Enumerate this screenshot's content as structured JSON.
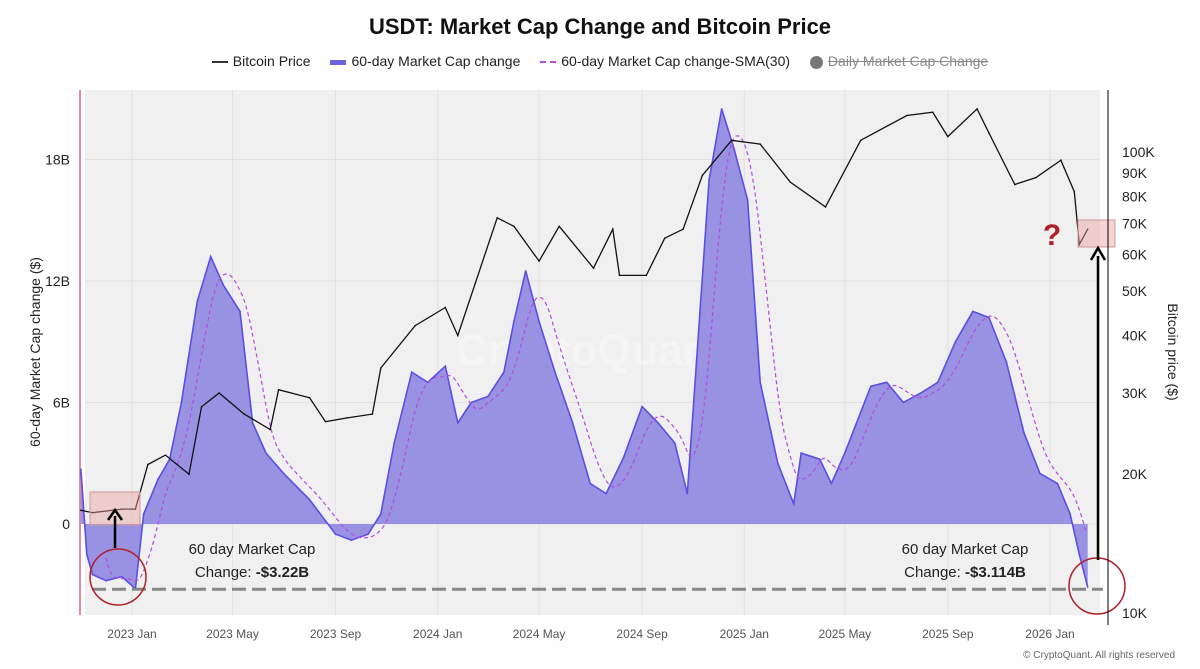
{
  "chart_data": {
    "type": "area",
    "title": "USDT: Market Cap Change and Bitcoin Price",
    "ylabel": "60-day Market Cap change ($)",
    "y2label": "Bitcoin price ($)",
    "ylim": [
      -3.5,
      21.5
    ],
    "y2_scale": "log",
    "y2lim": [
      10,
      130
    ],
    "yticks": [
      {
        "v": 18,
        "label": "18B"
      },
      {
        "v": 12,
        "label": "12B"
      },
      {
        "v": 6,
        "label": "6B"
      },
      {
        "v": 0,
        "label": "0"
      }
    ],
    "y2ticks": [
      {
        "v": 100,
        "label": "100K"
      },
      {
        "v": 90,
        "label": "90K"
      },
      {
        "v": 80,
        "label": "80K"
      },
      {
        "v": 70,
        "label": "70K"
      },
      {
        "v": 60,
        "label": "60K"
      },
      {
        "v": 50,
        "label": "50K"
      },
      {
        "v": 40,
        "label": "40K"
      },
      {
        "v": 30,
        "label": "30K"
      },
      {
        "v": 20,
        "label": "20K"
      },
      {
        "v": 10,
        "label": "10K"
      }
    ],
    "xticks": [
      {
        "d": "2023-01-01",
        "label": "2023 Jan"
      },
      {
        "d": "2023-05-01",
        "label": "2023 May"
      },
      {
        "d": "2023-09-01",
        "label": "2023 Sep"
      },
      {
        "d": "2024-01-01",
        "label": "2024 Jan"
      },
      {
        "d": "2024-05-01",
        "label": "2024 May"
      },
      {
        "d": "2024-09-01",
        "label": "2024 Sep"
      },
      {
        "d": "2025-01-01",
        "label": "2025 Jan"
      },
      {
        "d": "2025-05-01",
        "label": "2025 May"
      },
      {
        "d": "2025-09-01",
        "label": "2025 Sep"
      },
      {
        "d": "2026-01-01",
        "label": "2026 Jan"
      }
    ],
    "grid": true,
    "legend_position": "top",
    "legend": [
      "Bitcoin Price",
      "60-day Market Cap change",
      "60-day Market Cap change-SMA(30)",
      "Daily Market Cap Change"
    ],
    "colors": {
      "btc": "#111111",
      "mc_fill": "#8f87e0",
      "mc_line": "#5a4fe0",
      "sma": "#b44be0",
      "daily": "#777777",
      "annot_red": "#b0202a",
      "box": "#e8a0a0"
    },
    "series": [
      {
        "name": "60-day Market Cap change",
        "unit": "B USD",
        "points": [
          [
            "2022-11-01",
            2.7
          ],
          [
            "2022-11-08",
            -1.5
          ],
          [
            "2022-11-15",
            -2.5
          ],
          [
            "2022-12-01",
            -2.8
          ],
          [
            "2022-12-20",
            -2.6
          ],
          [
            "2023-01-05",
            -3.2
          ],
          [
            "2023-01-15",
            0.5
          ],
          [
            "2023-02-01",
            2.2
          ],
          [
            "2023-02-15",
            3.2
          ],
          [
            "2023-03-01",
            6
          ],
          [
            "2023-03-20",
            11
          ],
          [
            "2023-04-05",
            13.2
          ],
          [
            "2023-04-20",
            11.8
          ],
          [
            "2023-05-10",
            10.5
          ],
          [
            "2023-05-25",
            5
          ],
          [
            "2023-06-10",
            3.5
          ],
          [
            "2023-07-01",
            2.5
          ],
          [
            "2023-08-01",
            1.2
          ],
          [
            "2023-09-01",
            -0.5
          ],
          [
            "2023-09-20",
            -0.8
          ],
          [
            "2023-10-10",
            -0.5
          ],
          [
            "2023-10-25",
            0.5
          ],
          [
            "2023-11-10",
            4
          ],
          [
            "2023-12-01",
            7.5
          ],
          [
            "2023-12-20",
            7
          ],
          [
            "2024-01-10",
            7.8
          ],
          [
            "2024-01-25",
            5
          ],
          [
            "2024-02-10",
            6
          ],
          [
            "2024-03-01",
            6.3
          ],
          [
            "2024-03-20",
            7.5
          ],
          [
            "2024-04-01",
            10
          ],
          [
            "2024-04-15",
            12.5
          ],
          [
            "2024-05-01",
            10
          ],
          [
            "2024-05-20",
            7.5
          ],
          [
            "2024-06-10",
            5
          ],
          [
            "2024-07-01",
            2
          ],
          [
            "2024-07-20",
            1.5
          ],
          [
            "2024-08-10",
            3.3
          ],
          [
            "2024-09-01",
            5.8
          ],
          [
            "2024-09-20",
            5
          ],
          [
            "2024-10-10",
            4
          ],
          [
            "2024-10-25",
            1.5
          ],
          [
            "2024-11-05",
            8
          ],
          [
            "2024-11-20",
            17
          ],
          [
            "2024-12-05",
            20.5
          ],
          [
            "2024-12-20",
            18.5
          ],
          [
            "2025-01-05",
            16
          ],
          [
            "2025-01-20",
            7
          ],
          [
            "2025-02-10",
            3
          ],
          [
            "2025-03-01",
            1
          ],
          [
            "2025-03-10",
            3.5
          ],
          [
            "2025-04-01",
            3.2
          ],
          [
            "2025-04-15",
            2
          ],
          [
            "2025-05-01",
            3.5
          ],
          [
            "2025-06-01",
            6.8
          ],
          [
            "2025-06-20",
            7
          ],
          [
            "2025-07-10",
            6
          ],
          [
            "2025-08-01",
            6.5
          ],
          [
            "2025-08-20",
            7
          ],
          [
            "2025-09-10",
            9
          ],
          [
            "2025-10-01",
            10.5
          ],
          [
            "2025-10-20",
            10.2
          ],
          [
            "2025-11-10",
            8
          ],
          [
            "2025-12-01",
            4.5
          ],
          [
            "2025-12-20",
            2.5
          ],
          [
            "2026-01-10",
            2
          ],
          [
            "2026-01-25",
            0.5
          ],
          [
            "2026-02-05",
            -1.5
          ],
          [
            "2026-02-15",
            -3.114
          ]
        ]
      },
      {
        "name": "Bitcoin Price",
        "unit": "K USD",
        "points": [
          [
            "2022-11-01",
            16.7
          ],
          [
            "2022-11-15",
            16.5
          ],
          [
            "2022-12-20",
            16.8
          ],
          [
            "2023-01-05",
            16.8
          ],
          [
            "2023-01-20",
            21
          ],
          [
            "2023-02-10",
            22
          ],
          [
            "2023-03-10",
            20
          ],
          [
            "2023-03-25",
            28
          ],
          [
            "2023-04-15",
            30
          ],
          [
            "2023-05-15",
            27
          ],
          [
            "2023-06-15",
            25
          ],
          [
            "2023-06-25",
            30.5
          ],
          [
            "2023-08-01",
            29.3
          ],
          [
            "2023-08-20",
            26
          ],
          [
            "2023-09-15",
            26.5
          ],
          [
            "2023-10-15",
            27
          ],
          [
            "2023-10-25",
            34
          ],
          [
            "2023-12-05",
            42
          ],
          [
            "2024-01-10",
            46
          ],
          [
            "2024-01-25",
            40
          ],
          [
            "2024-02-15",
            52
          ],
          [
            "2024-03-12",
            72
          ],
          [
            "2024-04-01",
            69
          ],
          [
            "2024-05-01",
            58
          ],
          [
            "2024-05-25",
            69
          ],
          [
            "2024-07-05",
            56
          ],
          [
            "2024-07-28",
            68
          ],
          [
            "2024-08-05",
            54
          ],
          [
            "2024-09-06",
            54
          ],
          [
            "2024-09-28",
            65
          ],
          [
            "2024-10-20",
            68
          ],
          [
            "2024-11-12",
            89
          ],
          [
            "2024-12-17",
            106
          ],
          [
            "2025-01-20",
            104
          ],
          [
            "2025-02-25",
            86
          ],
          [
            "2025-04-08",
            76
          ],
          [
            "2025-05-20",
            106
          ],
          [
            "2025-07-14",
            120
          ],
          [
            "2025-08-14",
            122
          ],
          [
            "2025-09-01",
            108
          ],
          [
            "2025-10-06",
            124
          ],
          [
            "2025-10-20",
            110
          ],
          [
            "2025-11-20",
            85
          ],
          [
            "2025-12-15",
            88
          ],
          [
            "2026-01-14",
            96
          ],
          [
            "2026-01-30",
            82
          ],
          [
            "2026-02-05",
            63
          ],
          [
            "2026-02-15",
            68
          ]
        ]
      }
    ],
    "sma_window_days": 30,
    "annotations": {
      "left_text_1": "60 day Market Cap",
      "left_text_2": "Change: ",
      "left_value": "-$3.22B",
      "right_text_1": "60 day Market Cap",
      "right_text_2": "Change: ",
      "right_value": "-$3.114B",
      "question": "?",
      "reference_level": -3.22
    }
  },
  "watermark": "CryptoQuant",
  "footer": "© CryptoQuant. All rights reserved"
}
